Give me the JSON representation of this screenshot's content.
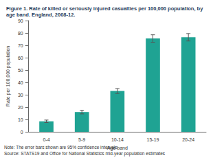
{
  "chart_data": {
    "type": "bar",
    "title": "Figure 1. Rate of killed or seriously injured casualties per 100,000 population, by age band. England, 2008-12.",
    "x_label": "Age band",
    "y_label": "Rate per 100,000 population",
    "categories": [
      "0-4",
      "5-9",
      "10-14",
      "15-19",
      "20-24"
    ],
    "values": [
      8.5,
      16,
      33,
      75.5,
      76.5
    ],
    "error_low": [
      7.5,
      14.5,
      31,
      72.5,
      73.5
    ],
    "error_high": [
      9.5,
      17.5,
      35,
      78.5,
      79.5
    ],
    "color": "#1fa393",
    "ylim": [
      0,
      90
    ],
    "yticks": [
      0,
      10,
      20,
      30,
      40,
      50,
      60,
      70,
      80,
      90
    ],
    "grid": false,
    "notes": [
      "Note: The error bars shown are 95% confidence intervals.",
      "Source: STATS19 and Office for National Statistics mid-year population estimates"
    ]
  }
}
